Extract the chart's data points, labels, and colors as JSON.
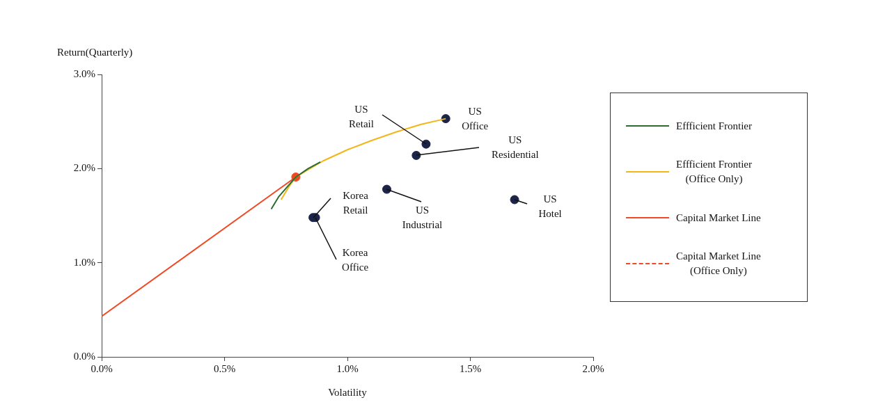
{
  "chart_data": {
    "type": "line",
    "xlabel": "Volatility",
    "ylabel": "Return(Quarterly)",
    "xlim": [
      0,
      2
    ],
    "xticks": [
      {
        "value": 0,
        "label": "0.0%"
      },
      {
        "value": 0.5,
        "label": "0.5%"
      },
      {
        "value": 1,
        "label": "1.0%"
      },
      {
        "value": 1.5,
        "label": "1.5%"
      },
      {
        "value": 2,
        "label": "2.0%"
      }
    ],
    "ylim": [
      0,
      3
    ],
    "yticks": [
      {
        "value": 0,
        "label": "0.0%"
      },
      {
        "value": 1,
        "label": "1.0%"
      },
      {
        "value": 2,
        "label": "2.0%"
      },
      {
        "value": 3,
        "label": "3.0%"
      }
    ],
    "grid": false,
    "legend": "right",
    "series": [
      {
        "name": "Effficient Frontier",
        "type": "line",
        "color": "#2e6b30",
        "line_style": "solid",
        "marker": "none",
        "x": [
          0.69,
          0.72,
          0.76,
          0.79,
          0.84,
          0.89
        ],
        "values": [
          1.57,
          1.7,
          1.82,
          1.91,
          2.0,
          2.07
        ]
      },
      {
        "name": "Effficient Frontier (Office Only)",
        "type": "line",
        "color": "#f2b619",
        "line_style": "solid",
        "marker": "none",
        "x": [
          0.73,
          0.76,
          0.79,
          0.9,
          1.0,
          1.1,
          1.2,
          1.3,
          1.4
        ],
        "values": [
          1.67,
          1.8,
          1.91,
          2.08,
          2.2,
          2.3,
          2.39,
          2.47,
          2.53
        ]
      },
      {
        "name": "Capital Market Line",
        "type": "line",
        "color": "#f04a24",
        "line_style": "solid",
        "marker": "none",
        "x": [
          0,
          0.79
        ],
        "values": [
          0.43,
          1.91
        ]
      },
      {
        "name": "Capital Market Line (Office Only)",
        "type": "line",
        "color": "#f04a24",
        "line_style": "dashed",
        "marker": "none"
      },
      {
        "type": "scatter",
        "color": "#1c2448",
        "marker": "circle",
        "x": [
          0.86,
          0.87,
          1.4,
          1.32,
          1.28,
          1.16,
          1.68
        ],
        "values": [
          1.48,
          1.48,
          2.53,
          2.26,
          2.14,
          1.78,
          1.67
        ]
      },
      {
        "type": "scatter",
        "color": "#f04a24",
        "marker": "circle",
        "x": [
          0.79
        ],
        "values": [
          1.91
        ]
      }
    ],
    "annotations": [
      {
        "text": "Korea Retail",
        "x": 0.86,
        "y": 1.48
      },
      {
        "text": "Korea Office",
        "x": 0.87,
        "y": 1.48
      },
      {
        "text": "US Office",
        "x": 1.4,
        "y": 2.53
      },
      {
        "text": "US Retail",
        "x": 1.32,
        "y": 2.26
      },
      {
        "text": "US Residential",
        "x": 1.28,
        "y": 2.14
      },
      {
        "text": "US Industrial",
        "x": 1.16,
        "y": 1.78
      },
      {
        "text": "US Hotel",
        "x": 1.68,
        "y": 1.67
      }
    ]
  }
}
